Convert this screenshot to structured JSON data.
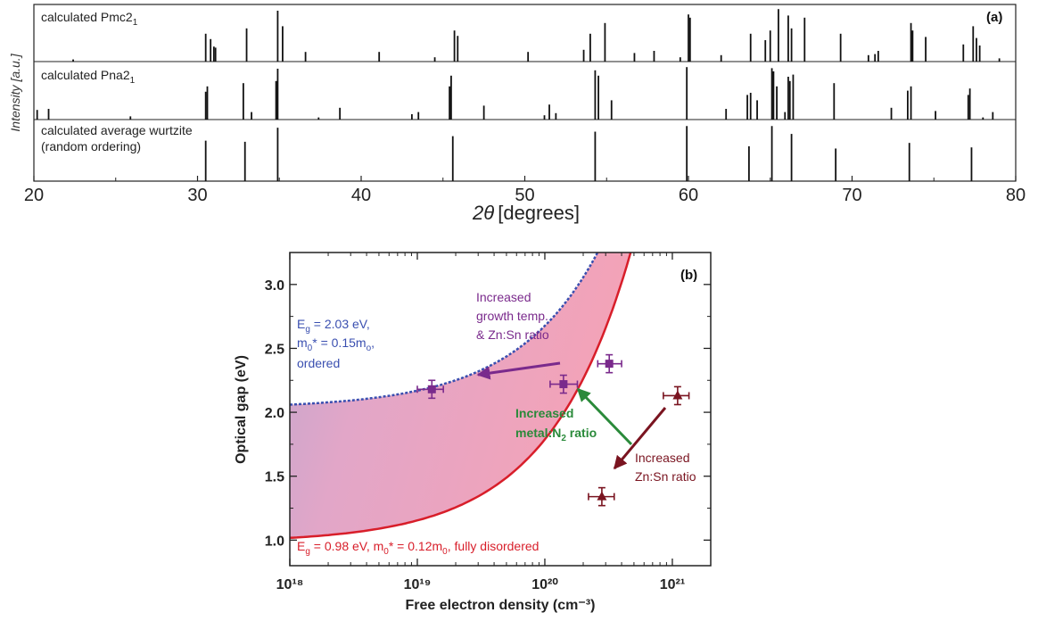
{
  "chart_data": [
    {
      "type": "bar",
      "panel_label": "(a)",
      "xlabel_symbol": "2θ",
      "xlabel_unit": "[degrees]",
      "ylabel": "Intensity [a.u.]",
      "xlim": [
        20,
        80
      ],
      "xticks": [
        "20",
        "30",
        "40",
        "50",
        "60",
        "70",
        "80"
      ],
      "series": [
        {
          "name": "calculated Pmc2₁",
          "peaks": [
            {
              "x": 22.4,
              "y": 0.04
            },
            {
              "x": 30.5,
              "y": 0.52
            },
            {
              "x": 30.8,
              "y": 0.42
            },
            {
              "x": 31.0,
              "y": 0.28
            },
            {
              "x": 31.1,
              "y": 0.26
            },
            {
              "x": 33.0,
              "y": 0.62
            },
            {
              "x": 34.9,
              "y": 0.95
            },
            {
              "x": 35.2,
              "y": 0.66
            },
            {
              "x": 36.6,
              "y": 0.18
            },
            {
              "x": 41.1,
              "y": 0.18
            },
            {
              "x": 44.5,
              "y": 0.08
            },
            {
              "x": 45.7,
              "y": 0.58
            },
            {
              "x": 45.9,
              "y": 0.48
            },
            {
              "x": 50.2,
              "y": 0.18
            },
            {
              "x": 53.6,
              "y": 0.22
            },
            {
              "x": 54.0,
              "y": 0.52
            },
            {
              "x": 54.9,
              "y": 0.72
            },
            {
              "x": 56.7,
              "y": 0.16
            },
            {
              "x": 57.9,
              "y": 0.2
            },
            {
              "x": 59.5,
              "y": 0.08
            },
            {
              "x": 60.0,
              "y": 0.88
            },
            {
              "x": 60.1,
              "y": 0.82
            },
            {
              "x": 62.0,
              "y": 0.12
            },
            {
              "x": 63.8,
              "y": 0.52
            },
            {
              "x": 64.7,
              "y": 0.4
            },
            {
              "x": 65.0,
              "y": 0.58
            },
            {
              "x": 65.5,
              "y": 0.98
            },
            {
              "x": 66.1,
              "y": 0.86
            },
            {
              "x": 66.3,
              "y": 0.62
            },
            {
              "x": 67.1,
              "y": 0.82
            },
            {
              "x": 69.3,
              "y": 0.52
            },
            {
              "x": 71.0,
              "y": 0.12
            },
            {
              "x": 71.4,
              "y": 0.14
            },
            {
              "x": 71.6,
              "y": 0.2
            },
            {
              "x": 73.6,
              "y": 0.72
            },
            {
              "x": 73.7,
              "y": 0.58
            },
            {
              "x": 74.5,
              "y": 0.46
            },
            {
              "x": 76.8,
              "y": 0.32
            },
            {
              "x": 77.4,
              "y": 0.66
            },
            {
              "x": 77.6,
              "y": 0.44
            },
            {
              "x": 77.8,
              "y": 0.3
            },
            {
              "x": 79.0,
              "y": 0.06
            }
          ]
        },
        {
          "name": "calculated Pna2₁",
          "peaks": [
            {
              "x": 20.2,
              "y": 0.18
            },
            {
              "x": 20.9,
              "y": 0.2
            },
            {
              "x": 25.9,
              "y": 0.06
            },
            {
              "x": 30.5,
              "y": 0.52
            },
            {
              "x": 30.6,
              "y": 0.62
            },
            {
              "x": 32.8,
              "y": 0.68
            },
            {
              "x": 33.3,
              "y": 0.14
            },
            {
              "x": 34.8,
              "y": 0.72
            },
            {
              "x": 34.9,
              "y": 0.95
            },
            {
              "x": 37.4,
              "y": 0.04
            },
            {
              "x": 38.7,
              "y": 0.22
            },
            {
              "x": 43.1,
              "y": 0.1
            },
            {
              "x": 43.5,
              "y": 0.14
            },
            {
              "x": 45.4,
              "y": 0.62
            },
            {
              "x": 45.5,
              "y": 0.82
            },
            {
              "x": 47.5,
              "y": 0.26
            },
            {
              "x": 51.2,
              "y": 0.08
            },
            {
              "x": 51.5,
              "y": 0.28
            },
            {
              "x": 51.9,
              "y": 0.12
            },
            {
              "x": 54.3,
              "y": 0.92
            },
            {
              "x": 54.5,
              "y": 0.82
            },
            {
              "x": 55.3,
              "y": 0.36
            },
            {
              "x": 59.9,
              "y": 0.98
            },
            {
              "x": 62.3,
              "y": 0.2
            },
            {
              "x": 63.6,
              "y": 0.46
            },
            {
              "x": 63.8,
              "y": 0.5
            },
            {
              "x": 64.2,
              "y": 0.36
            },
            {
              "x": 65.1,
              "y": 0.96
            },
            {
              "x": 65.2,
              "y": 0.9
            },
            {
              "x": 65.4,
              "y": 0.62
            },
            {
              "x": 65.9,
              "y": 0.14
            },
            {
              "x": 66.1,
              "y": 0.8
            },
            {
              "x": 66.2,
              "y": 0.72
            },
            {
              "x": 66.4,
              "y": 0.84
            },
            {
              "x": 68.9,
              "y": 0.68
            },
            {
              "x": 72.4,
              "y": 0.22
            },
            {
              "x": 73.4,
              "y": 0.54
            },
            {
              "x": 73.6,
              "y": 0.62
            },
            {
              "x": 75.1,
              "y": 0.16
            },
            {
              "x": 77.1,
              "y": 0.46
            },
            {
              "x": 77.2,
              "y": 0.58
            },
            {
              "x": 78.0,
              "y": 0.04
            },
            {
              "x": 78.6,
              "y": 0.14
            }
          ]
        },
        {
          "name": "calculated average wurtzite\n(random ordering)",
          "peaks": [
            {
              "x": 30.5,
              "y": 0.72
            },
            {
              "x": 32.9,
              "y": 0.7
            },
            {
              "x": 34.9,
              "y": 0.95
            },
            {
              "x": 45.6,
              "y": 0.8
            },
            {
              "x": 54.3,
              "y": 0.88
            },
            {
              "x": 59.9,
              "y": 0.98
            },
            {
              "x": 63.7,
              "y": 0.62
            },
            {
              "x": 65.1,
              "y": 0.98
            },
            {
              "x": 66.3,
              "y": 0.84
            },
            {
              "x": 69.0,
              "y": 0.58
            },
            {
              "x": 73.5,
              "y": 0.68
            },
            {
              "x": 77.3,
              "y": 0.6
            }
          ]
        }
      ]
    },
    {
      "type": "scatter",
      "panel_label": "(b)",
      "xlabel": "Free electron density (cm⁻³)",
      "ylabel": "Optical gap (eV)",
      "xscale": "log",
      "xlim": [
        1e+18,
        2e+21
      ],
      "ylim": [
        0.8,
        3.25
      ],
      "xticks": [
        "10¹⁸",
        "10¹⁹",
        "10²⁰",
        "10²¹"
      ],
      "yticks": [
        "1.0",
        "1.5",
        "2.0",
        "2.5",
        "3.0"
      ],
      "series": [
        {
          "marker": "square",
          "color": "#7a2a8c",
          "points": [
            {
              "x": 1.3e+19,
              "y": 2.18,
              "xerr_lo": 1e+19,
              "xerr_hi": 1.6e+19,
              "yerr": 0.07
            },
            {
              "x": 1.4e+20,
              "y": 2.22,
              "xerr_lo": 1.1e+20,
              "xerr_hi": 1.8e+20,
              "yerr": 0.07
            },
            {
              "x": 3.2e+20,
              "y": 2.38,
              "xerr_lo": 2.6e+20,
              "xerr_hi": 4e+20,
              "yerr": 0.07
            }
          ]
        },
        {
          "marker": "triangle",
          "color": "#7a1420",
          "points": [
            {
              "x": 1.1e+21,
              "y": 2.13,
              "xerr_lo": 8.5e+20,
              "xerr_hi": 1.35e+21,
              "yerr": 0.07
            },
            {
              "x": 2.8e+20,
              "y": 1.34,
              "xerr_lo": 2.2e+20,
              "xerr_hi": 3.5e+20,
              "yerr": 0.07
            }
          ]
        }
      ],
      "curves": [
        {
          "eg": 2.03,
          "ratio": 0.15,
          "color": "#3a4fb0",
          "style": "dashed"
        },
        {
          "eg": 0.98,
          "ratio": 0.12,
          "color": "#d81e2a",
          "style": "solid"
        }
      ],
      "annotations": {
        "ordered": [
          "E",
          "g",
          " = 2.03 eV,",
          "m",
          "0",
          "* = 0.15m",
          "o",
          ",",
          "ordered"
        ],
        "disordered": [
          "E",
          "g",
          " = 0.98 eV, m",
          "0",
          "* = 0.12m",
          "0",
          ", fully disordered"
        ],
        "growth": [
          "Increased",
          "growth temp.",
          "& Zn:Sn ratio"
        ],
        "metal": [
          "Increased",
          "metal:N",
          "2",
          " ratio"
        ],
        "znsn": [
          "Increased",
          "Zn:Sn ratio"
        ]
      },
      "colors": {
        "ordered": "#3a4fb0",
        "disordered": "#d81e2a",
        "growth": "#7a2a8c",
        "metal": "#2a8a3a",
        "znsn": "#7a1420"
      }
    }
  ]
}
